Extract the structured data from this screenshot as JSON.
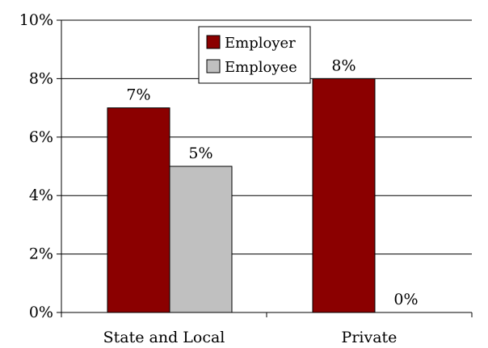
{
  "chart_data": {
    "type": "bar",
    "categories": [
      "State and Local",
      "Private"
    ],
    "series": [
      {
        "name": "Employer",
        "values": [
          7,
          8
        ],
        "labels": [
          "7%",
          "8%"
        ],
        "color": "#8b0000"
      },
      {
        "name": "Employee",
        "values": [
          5,
          0
        ],
        "labels": [
          "5%",
          "0%"
        ],
        "color": "#c0c0c0"
      }
    ],
    "ylim": [
      0,
      10
    ],
    "yticks": [
      0,
      2,
      4,
      6,
      8,
      10
    ],
    "ytick_labels": [
      "0%",
      "2%",
      "4%",
      "6%",
      "8%",
      "10%"
    ],
    "grid": true,
    "legend_position": "top-center",
    "title": "",
    "xlabel": "",
    "ylabel": ""
  }
}
